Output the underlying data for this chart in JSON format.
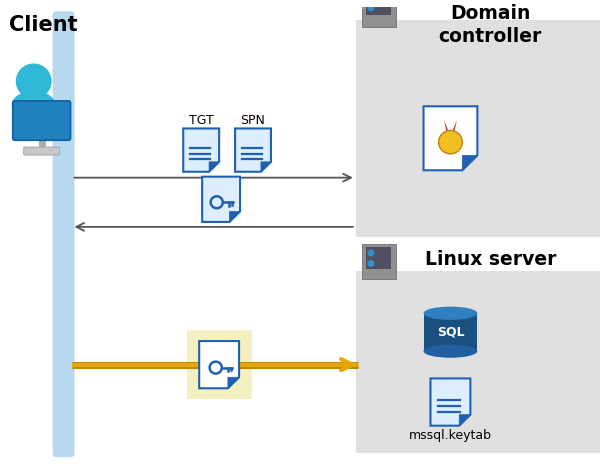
{
  "bg_color": "#ffffff",
  "client_label": "Client",
  "domain_label": "Domain\ncontroller",
  "linux_label": "Linux server",
  "tgt_label": "TGT",
  "spn_label": "SPN",
  "mssql_label": "mssql.keytab",
  "sql_label": "SQL",
  "panel_color": "#e0e0e0",
  "client_bar_color": "#b8d8f0",
  "arrow_dark": "#555555",
  "arrow_yellow": "#e6a800",
  "doc_blue_dark": "#2060b0",
  "doc_blue_light": "#4090d0",
  "doc_bg_white": "#ffffff",
  "doc_bg_blue_light": "#ddeeff",
  "highlight_yellow": "#f5f0c0",
  "sql_dark": "#1a4f80",
  "sql_mid": "#2060a0",
  "sql_top": "#3080c0",
  "server_dark": "#707070",
  "server_mid": "#909090",
  "server_light": "#b0b0b0",
  "server_dot": "#3090d0",
  "cert_gold": "#f0c020",
  "cert_red": "#d03020",
  "person_blue": "#30b8d8",
  "monitor_blue": "#2080c0"
}
